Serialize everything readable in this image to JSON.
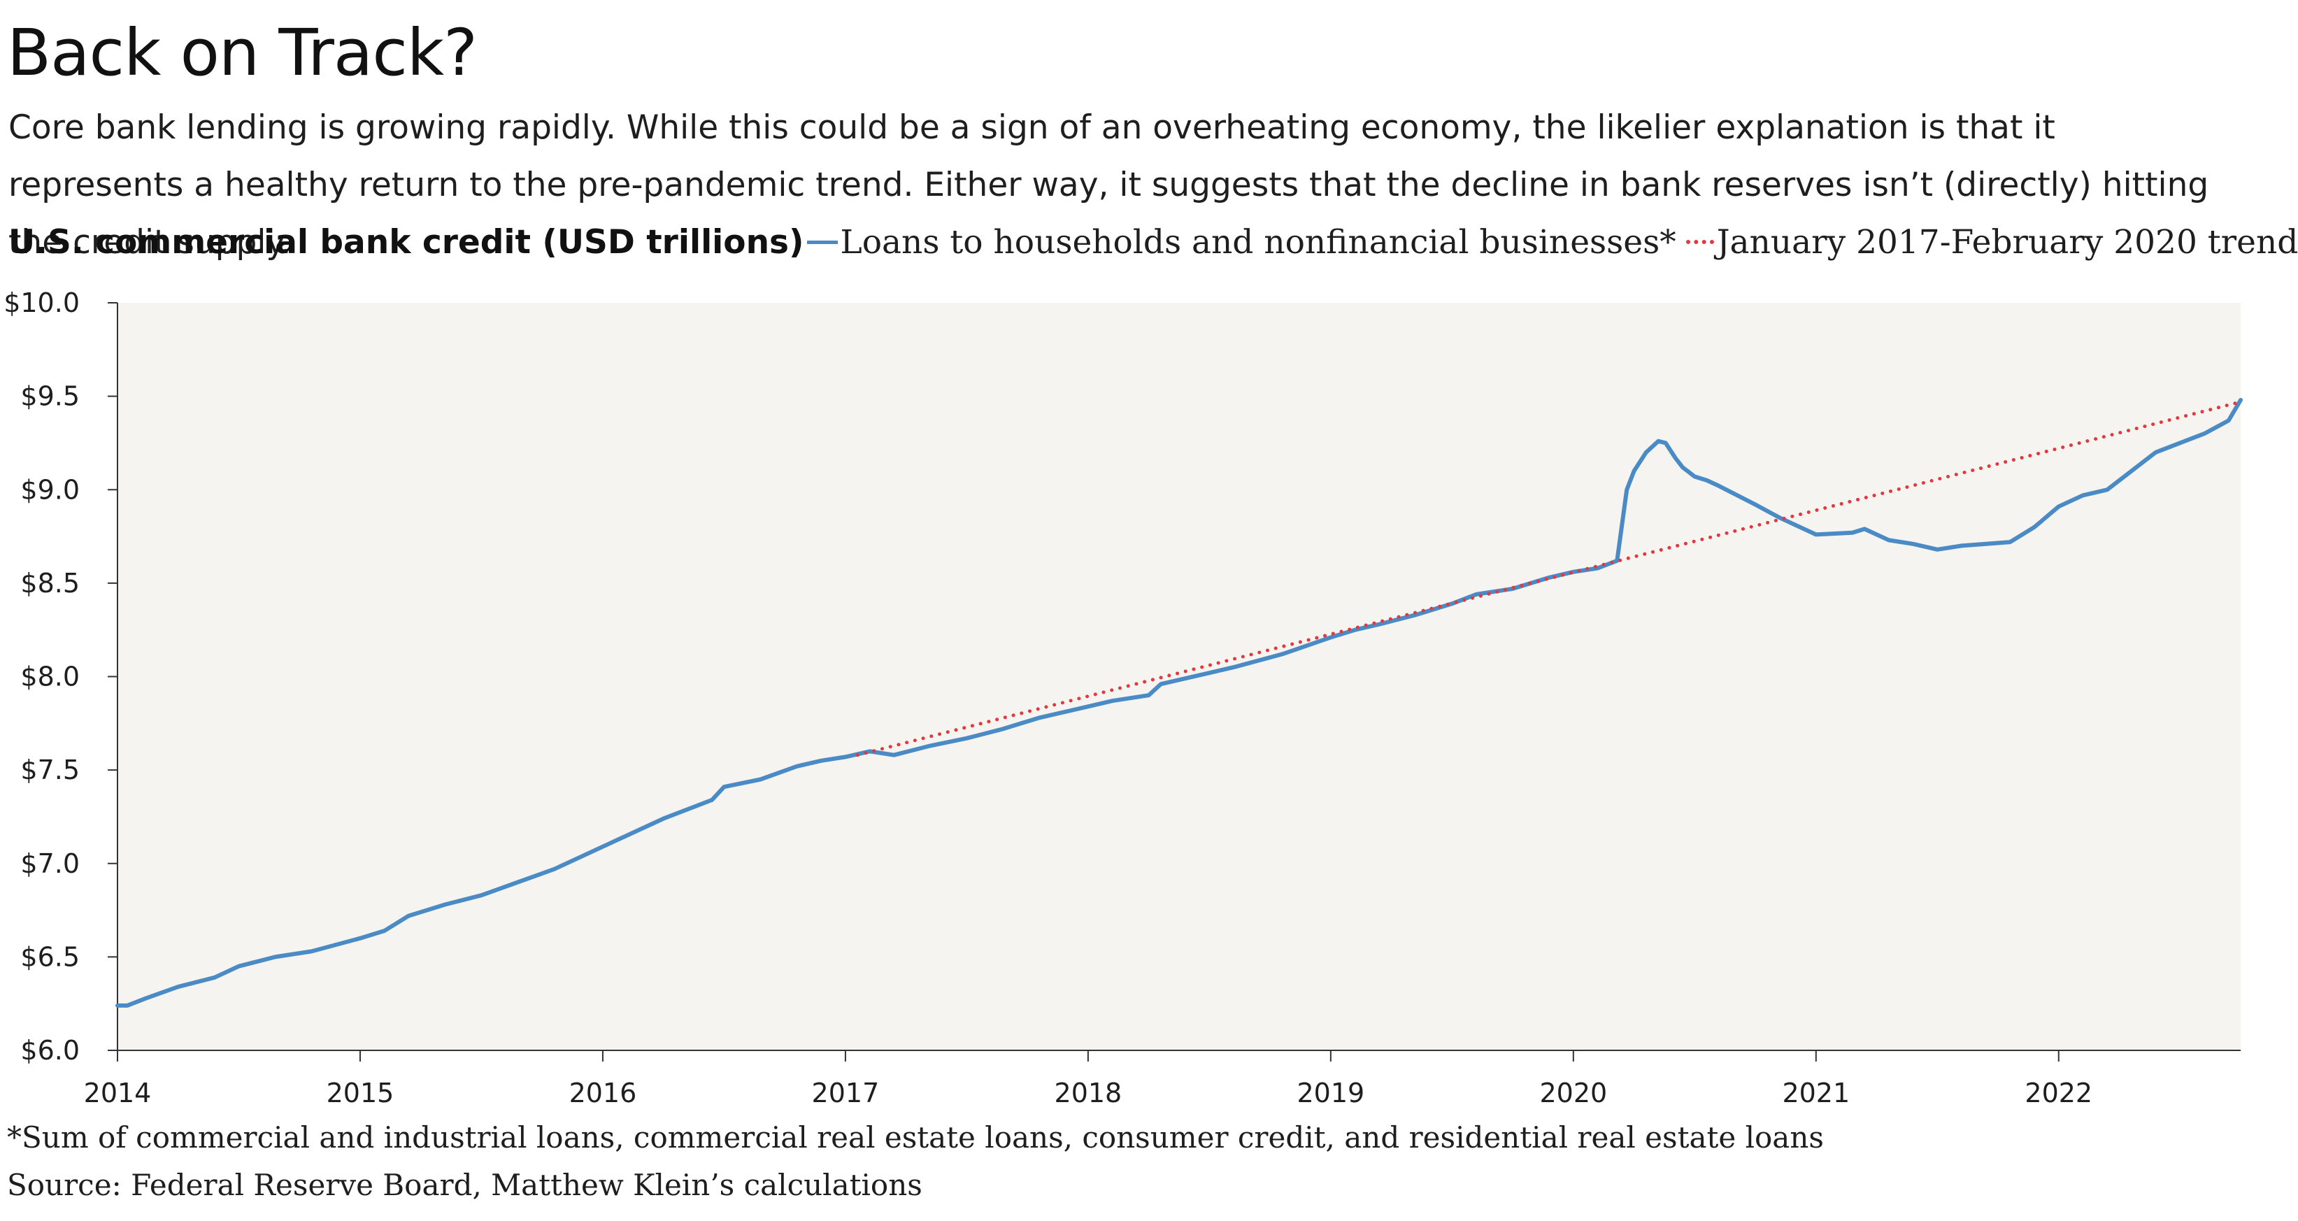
{
  "header": {
    "title": "Back on Track?",
    "subtitle": "Core bank lending is growing rapidly. While this could be a sign of an overheating economy, the likelier explanation is that it represents a healthy return to the pre-pandemic trend. Either way, it suggests that the decline in bank reserves isn’t (directly) hitting the credit supply."
  },
  "legend": {
    "heading": "U.S. commercial bank credit (USD trillions)",
    "items": [
      {
        "label": "Loans to households and nonfinancial businesses*",
        "style": "solid"
      },
      {
        "label": "January 2017-February 2020 trend",
        "style": "dotted"
      }
    ]
  },
  "colors": {
    "loans": "#4a8bc6",
    "trend": "#e0393e",
    "plot_background": "#f5f4f0",
    "axis": "#333333"
  },
  "footnote": "*Sum of commercial and industrial loans, commercial real estate loans, consumer credit, and residential real estate loans",
  "source": "Source: Federal Reserve Board, Matthew Klein’s calculations",
  "chart_data": {
    "type": "line",
    "title": "U.S. commercial bank credit (USD trillions)",
    "xlabel": "",
    "ylabel": "",
    "xlim": [
      2014.0,
      2022.75
    ],
    "ylim": [
      6.0,
      10.0
    ],
    "x_ticks": [
      2014,
      2015,
      2016,
      2017,
      2018,
      2019,
      2020,
      2021,
      2022
    ],
    "x_tick_labels": [
      "2014",
      "2015",
      "2016",
      "2017",
      "2018",
      "2019",
      "2020",
      "2021",
      "2022"
    ],
    "y_ticks": [
      6.0,
      6.5,
      7.0,
      7.5,
      8.0,
      8.5,
      9.0,
      9.5,
      10.0
    ],
    "y_tick_labels": [
      "$6.0",
      "$6.5",
      "$7.0",
      "$7.5",
      "$8.0",
      "$8.5",
      "$9.0",
      "$9.5",
      "$10.0"
    ],
    "grid": false,
    "series": [
      {
        "name": "Loans to households and nonfinancial businesses*",
        "style": "solid",
        "x": [
          2014.0,
          2014.04,
          2014.12,
          2014.25,
          2014.4,
          2014.5,
          2014.65,
          2014.8,
          2015.0,
          2015.1,
          2015.2,
          2015.35,
          2015.5,
          2015.65,
          2015.8,
          2016.0,
          2016.15,
          2016.25,
          2016.45,
          2016.5,
          2016.65,
          2016.8,
          2016.9,
          2017.0,
          2017.1,
          2017.2,
          2017.35,
          2017.5,
          2017.65,
          2017.8,
          2018.0,
          2018.1,
          2018.25,
          2018.3,
          2018.5,
          2018.6,
          2018.8,
          2019.0,
          2019.1,
          2019.2,
          2019.35,
          2019.5,
          2019.6,
          2019.75,
          2019.9,
          2020.0,
          2020.1,
          2020.18,
          2020.22,
          2020.25,
          2020.3,
          2020.35,
          2020.38,
          2020.42,
          2020.45,
          2020.5,
          2020.55,
          2020.6,
          2020.75,
          2020.85,
          2021.0,
          2021.15,
          2021.2,
          2021.3,
          2021.4,
          2021.5,
          2021.6,
          2021.7,
          2021.8,
          2021.9,
          2022.0,
          2022.1,
          2022.2,
          2022.3,
          2022.4,
          2022.5,
          2022.6,
          2022.7,
          2022.75
        ],
        "values": [
          6.24,
          6.24,
          6.28,
          6.34,
          6.39,
          6.45,
          6.5,
          6.53,
          6.6,
          6.64,
          6.72,
          6.78,
          6.83,
          6.9,
          6.97,
          7.09,
          7.18,
          7.24,
          7.34,
          7.41,
          7.45,
          7.52,
          7.55,
          7.57,
          7.6,
          7.58,
          7.63,
          7.67,
          7.72,
          7.78,
          7.84,
          7.87,
          7.9,
          7.96,
          8.02,
          8.05,
          8.12,
          8.21,
          8.25,
          8.28,
          8.33,
          8.39,
          8.44,
          8.47,
          8.53,
          8.56,
          8.58,
          8.62,
          9.0,
          9.1,
          9.2,
          9.26,
          9.25,
          9.17,
          9.12,
          9.07,
          9.05,
          9.02,
          8.92,
          8.85,
          8.76,
          8.77,
          8.79,
          8.73,
          8.71,
          8.68,
          8.7,
          8.71,
          8.72,
          8.8,
          8.91,
          8.97,
          9.0,
          9.1,
          9.2,
          9.25,
          9.3,
          9.37,
          9.48
        ]
      },
      {
        "name": "January 2017-February 2020 trend",
        "style": "dotted",
        "x": [
          2017.05,
          2022.75
        ],
        "values": [
          7.58,
          9.47
        ]
      }
    ]
  }
}
